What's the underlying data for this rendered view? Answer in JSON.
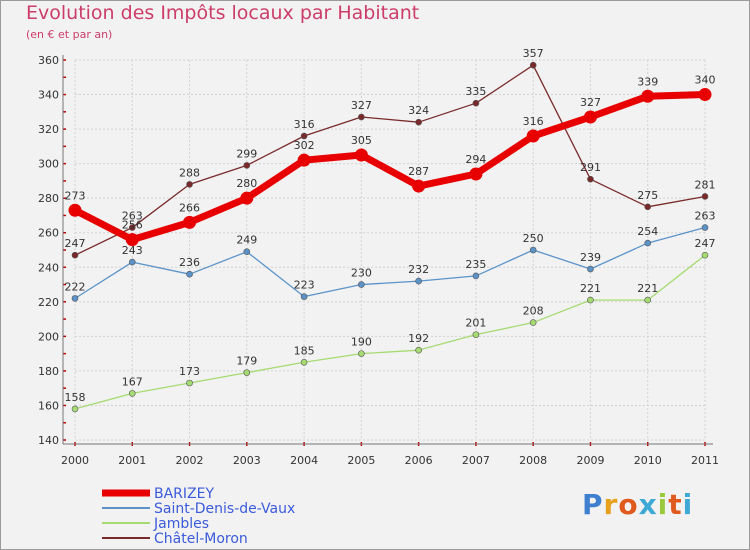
{
  "title": "Evolution des Impôts locaux par Habitant",
  "subtitle": "(en € et par an)",
  "logo": {
    "text": "Proxiti",
    "letters": [
      "P",
      "r",
      "o",
      "x",
      "i",
      "t",
      "i"
    ],
    "colors": [
      "#3f7fd0",
      "#e8a11c",
      "#e05a1e",
      "#3fa9d6",
      "#9ac93c",
      "#e05a1e",
      "#3fa9d6"
    ]
  },
  "chart_data": {
    "type": "line",
    "x": [
      "2000",
      "2001",
      "2002",
      "2003",
      "2004",
      "2005",
      "2006",
      "2007",
      "2008",
      "2009",
      "2010",
      "2011"
    ],
    "ylim": [
      140,
      360
    ],
    "yticks": [
      "140",
      "160",
      "180",
      "200",
      "220",
      "240",
      "260",
      "280",
      "300",
      "320",
      "340",
      "360"
    ],
    "grid": true,
    "legend_position": "bottom-left",
    "series": [
      {
        "name": "BARIZEY",
        "color": "#e80000",
        "values": [
          273,
          256,
          266,
          280,
          302,
          305,
          287,
          294,
          316,
          327,
          339,
          340
        ],
        "labels": [
          "273",
          "256",
          "266",
          "280",
          "302",
          "305",
          "287",
          "294",
          "316",
          "327",
          "339",
          "340"
        ]
      },
      {
        "name": "Saint-Denis-de-Vaux",
        "color": "#5b93c9",
        "values": [
          222,
          243,
          236,
          249,
          223,
          230,
          232,
          235,
          250,
          239,
          254,
          263
        ],
        "labels": [
          "222",
          "243",
          "236",
          "249",
          "223",
          "230",
          "232",
          "235",
          "250",
          "239",
          "254",
          "263"
        ]
      },
      {
        "name": "Jambles",
        "color": "#a6db72",
        "values": [
          158,
          167,
          173,
          179,
          185,
          190,
          192,
          201,
          208,
          221,
          221,
          247
        ],
        "labels": [
          "158",
          "167",
          "173",
          "179",
          "185",
          "190",
          "192",
          "201",
          "208",
          "221",
          "221",
          "247"
        ]
      },
      {
        "name": "Châtel-Moron",
        "color": "#7a2a2a",
        "values": [
          247,
          263,
          288,
          299,
          316,
          327,
          324,
          335,
          357,
          291,
          275,
          281
        ],
        "labels": [
          "247",
          "263",
          "288",
          "299",
          "316",
          "327",
          "324",
          "335",
          "357",
          "291",
          "275",
          "281"
        ]
      }
    ]
  }
}
